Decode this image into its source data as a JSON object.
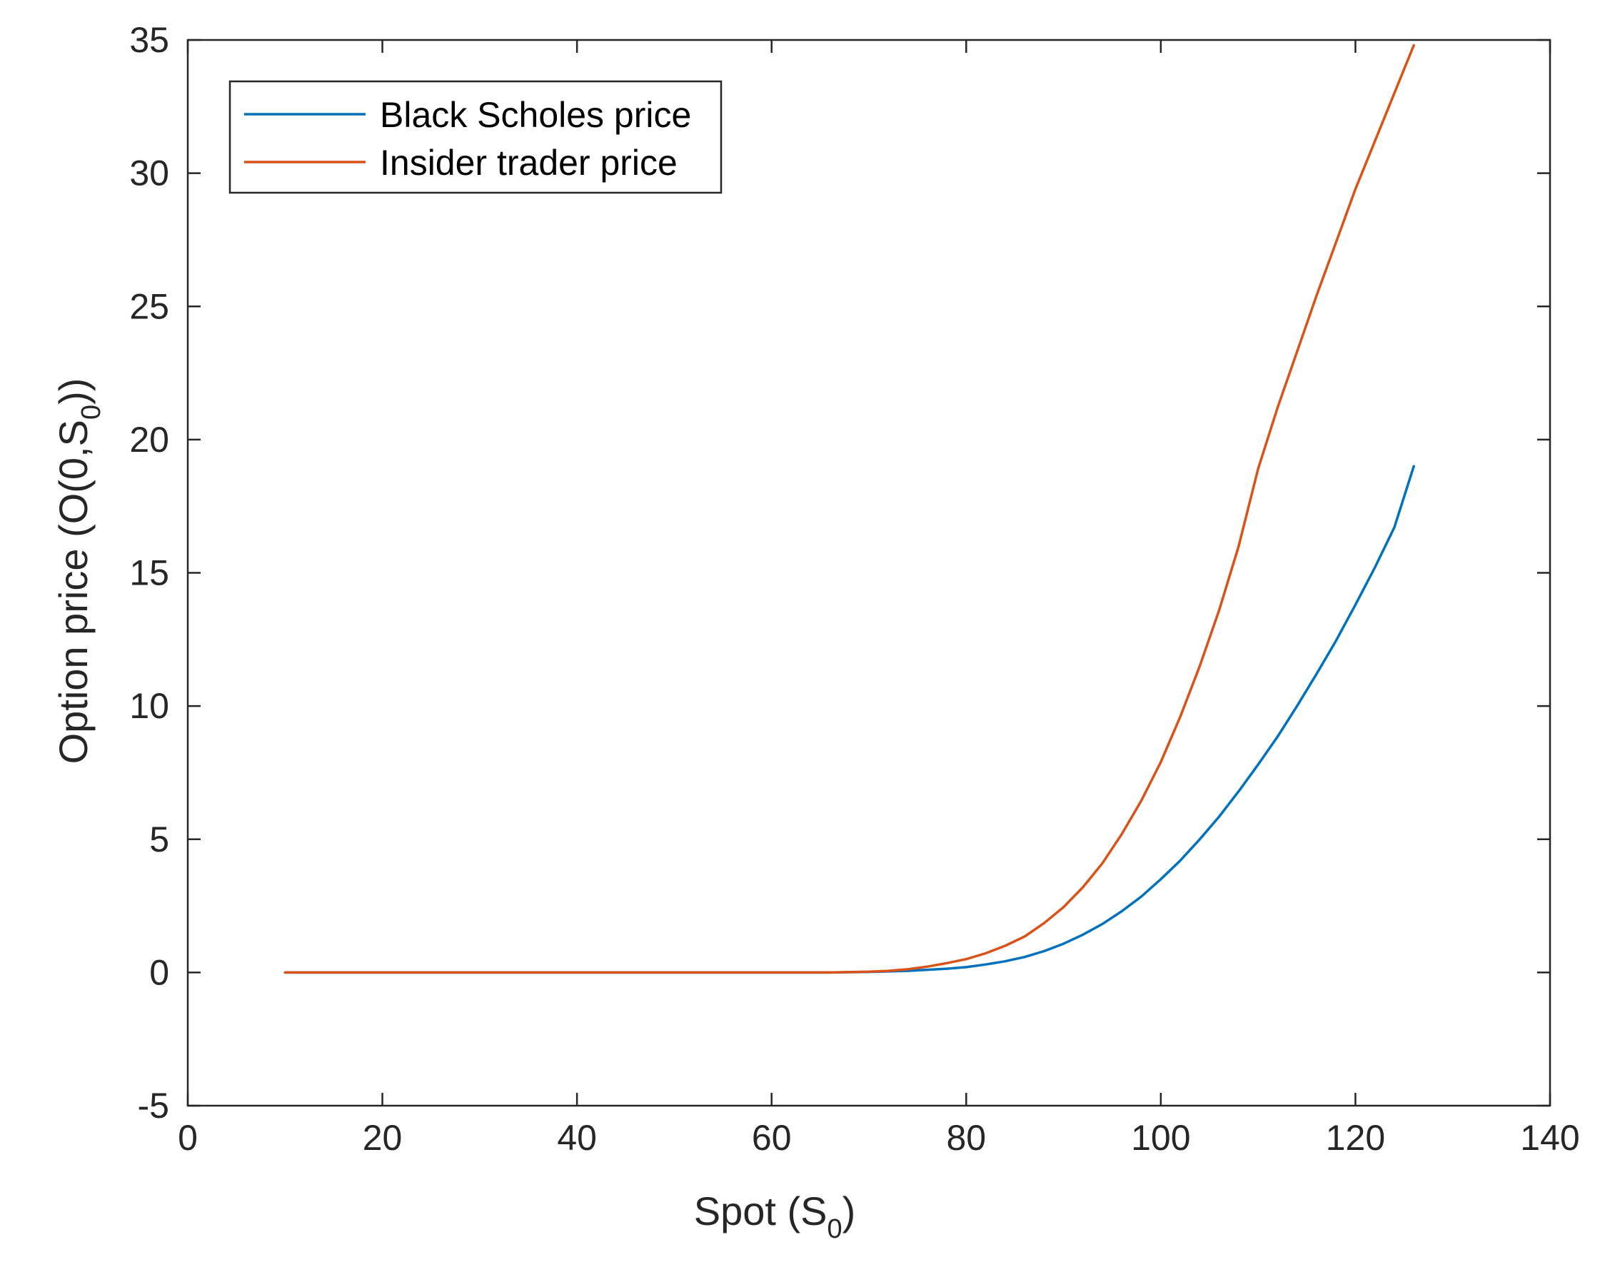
{
  "chart_data": {
    "type": "line",
    "xlabel": {
      "main": "Spot (S",
      "sub": "0",
      "tail": ")"
    },
    "ylabel": {
      "main": "Option price (O(0,S",
      "sub": "0",
      "tail": "))"
    },
    "xlim": [
      0,
      140
    ],
    "ylim": [
      -5,
      35
    ],
    "xticks": [
      0,
      20,
      40,
      60,
      80,
      100,
      120,
      140
    ],
    "yticks": [
      -5,
      0,
      5,
      10,
      15,
      20,
      25,
      30,
      35
    ],
    "xtick_labels": [
      "0",
      "20",
      "40",
      "60",
      "80",
      "100",
      "120",
      "140"
    ],
    "ytick_labels": [
      "-5",
      "0",
      "5",
      "10",
      "15",
      "20",
      "25",
      "30",
      "35"
    ],
    "grid": false,
    "legend_position": "top-left",
    "series": [
      {
        "name": "Black Scholes price",
        "color": "#0072BD",
        "x": [
          10,
          20,
          30,
          40,
          50,
          60,
          66,
          70,
          74,
          78,
          80,
          82,
          84,
          86,
          88,
          90,
          92,
          94,
          96,
          98,
          100,
          102,
          104,
          106,
          108,
          110,
          112,
          114,
          116,
          118,
          120,
          122,
          124,
          126
        ],
        "y": [
          0,
          0,
          0,
          0,
          0,
          0,
          0,
          0.02,
          0.06,
          0.14,
          0.2,
          0.3,
          0.42,
          0.58,
          0.8,
          1.08,
          1.42,
          1.82,
          2.3,
          2.85,
          3.5,
          4.2,
          5.0,
          5.85,
          6.8,
          7.8,
          8.85,
          10.0,
          11.2,
          12.45,
          13.8,
          15.2,
          16.7,
          19.0
        ]
      },
      {
        "name": "Insider trader price",
        "color": "#D95319",
        "x": [
          10,
          20,
          30,
          40,
          50,
          60,
          66,
          70,
          72,
          74,
          76,
          78,
          80,
          82,
          84,
          86,
          88,
          90,
          92,
          94,
          96,
          98,
          100,
          102,
          104,
          106,
          108,
          110,
          112,
          114,
          116,
          118,
          120,
          122,
          124,
          126
        ],
        "y": [
          0,
          0,
          0,
          0,
          0,
          0,
          0,
          0.03,
          0.06,
          0.12,
          0.22,
          0.35,
          0.5,
          0.72,
          1.0,
          1.35,
          1.85,
          2.45,
          3.2,
          4.1,
          5.2,
          6.45,
          7.9,
          9.6,
          11.5,
          13.6,
          16.0,
          18.9,
          21.2,
          23.3,
          25.4,
          27.4,
          29.4,
          31.2,
          33.0,
          34.8
        ]
      }
    ]
  }
}
